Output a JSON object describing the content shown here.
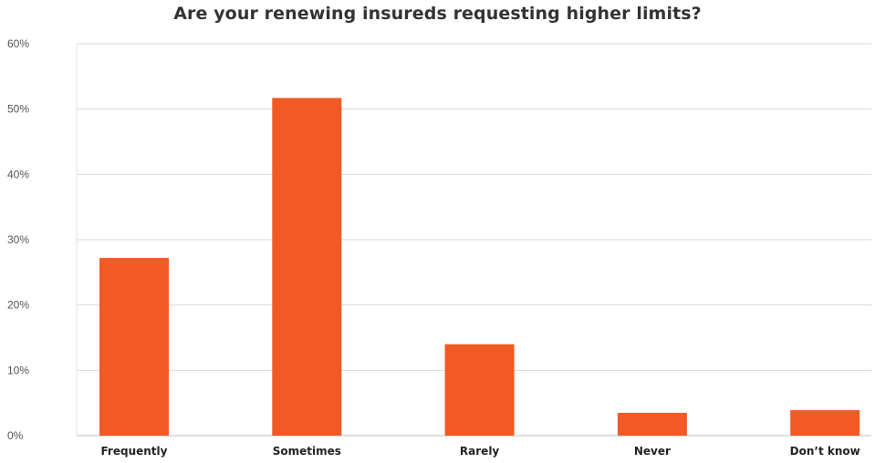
{
  "chart_data": {
    "type": "bar",
    "title": "Are your renewing insureds requesting higher limits?",
    "xlabel": "",
    "ylabel": "",
    "categories": [
      "Frequently",
      "Sometimes",
      "Rarely",
      "Never",
      "Don’t know"
    ],
    "values": [
      27.2,
      51.7,
      14.0,
      3.5,
      3.9
    ],
    "ylim": [
      0,
      60
    ],
    "y_ticks": [
      "0%",
      "10%",
      "20%",
      "30%",
      "40%",
      "50%",
      "60%"
    ],
    "grid": true,
    "legend": "none",
    "bar_color": "#F15A24",
    "grid_color": "#D9D9D9"
  }
}
